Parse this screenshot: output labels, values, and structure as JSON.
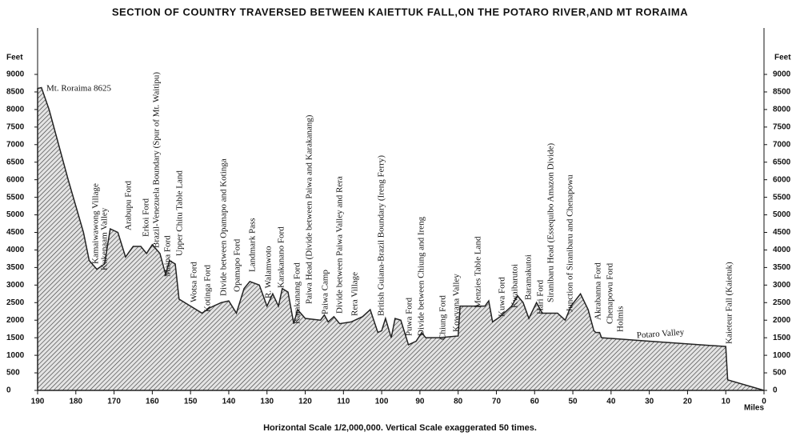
{
  "chart_data": {
    "type": "area",
    "title": "SECTION OF COUNTRY TRAVERSED BETWEEN KAIETTUK FALL,ON THE POTARO RIVER,AND MT RORAIMA",
    "subtitle": "Horizontal Scale 1/2,000,000. Vertical Scale exaggerated 50 times.",
    "y_label": "Feet",
    "y2_label": "Feet",
    "x_label": "Miles",
    "color": "#222222",
    "x": [
      190,
      189,
      187,
      182,
      178,
      176.5,
      174.5,
      172.5,
      171,
      169,
      167,
      165,
      163,
      161.5,
      160,
      158,
      156.5,
      155.5,
      154,
      153,
      150,
      147,
      145,
      142,
      140,
      138,
      136,
      134.5,
      132,
      130,
      128.5,
      127,
      126,
      124.5,
      123,
      122,
      120,
      116,
      115,
      114,
      112.5,
      111,
      108,
      105,
      103,
      101,
      100,
      99,
      97.5,
      96.5,
      95,
      93,
      91,
      89.5,
      88.5,
      85,
      80,
      79.5,
      77,
      73,
      72,
      71,
      69,
      66,
      64.5,
      63,
      61.5,
      59.5,
      58,
      54,
      52,
      50.5,
      48,
      46,
      44.5,
      44,
      43,
      42.5,
      30,
      10,
      9.5,
      0
    ],
    "values": [
      8600,
      8625,
      8000,
      6000,
      4500,
      3700,
      3450,
      3600,
      4600,
      4500,
      3800,
      4100,
      4100,
      3900,
      4150,
      3900,
      3300,
      3700,
      3600,
      2600,
      2400,
      2200,
      2350,
      2500,
      2550,
      2200,
      2900,
      3100,
      3000,
      2400,
      2750,
      2400,
      2900,
      2800,
      1900,
      2300,
      2050,
      2000,
      2150,
      1950,
      2100,
      1900,
      1950,
      2100,
      2300,
      1650,
      1700,
      2050,
      1500,
      2050,
      2000,
      1300,
      1400,
      1650,
      1500,
      1500,
      1550,
      2400,
      2400,
      2400,
      2550,
      1950,
      2100,
      2400,
      2700,
      2500,
      2050,
      2500,
      2200,
      2200,
      2000,
      2400,
      2750,
      2300,
      1700,
      1650,
      1650,
      1500,
      1400,
      1250,
      300,
      0
    ],
    "xlim": [
      190,
      0
    ],
    "xticks": [
      190,
      180,
      170,
      160,
      150,
      140,
      130,
      120,
      110,
      100,
      90,
      80,
      70,
      60,
      50,
      40,
      30,
      20,
      10,
      0
    ],
    "ylim": [
      0,
      9000
    ],
    "yticks": [
      0,
      500,
      1000,
      1500,
      2000,
      2500,
      3000,
      3500,
      4000,
      4500,
      5000,
      5500,
      6000,
      6500,
      7000,
      7500,
      8000,
      8500,
      9000
    ],
    "annotations": [
      "Mt. Roraima 8625",
      "Kamaiwawong Village",
      "Kukenaam Valley",
      "Arabupu Ford",
      "Erkoi Ford",
      "Brazil-Venezuela Boundary (Spur of Mt. Waitipu)",
      "Maipa Ford",
      "Upper Chitu Table Land",
      "Wotsa Ford",
      "Kotinga Ford",
      "Divide between Opamapo and Kotinga",
      "Opamapo Ford",
      "Landmark Pass",
      "R. Walamwoto",
      "Karakanano Ford",
      "Karakanang Ford",
      "Paiwa Head (Divide between Paiwa and Karakanang)",
      "Paiwa Camp",
      "Divide between Paiwa Valley and Rera",
      "Rera Village",
      "British Guiana-Brazil Boundary (Ireng Ferry)",
      "Puwa Ford",
      "Divide between Chiung and Ireng",
      "Chiung Ford",
      "Kowyana Valley",
      "Menzies Table Land",
      "Kuwa Ford",
      "Kwaibarutoi",
      "Baramakutoi",
      "Hari Ford",
      "Siranibaru Head (Essequibo Amazon Divide)",
      "Junction of Siranibaru and Chenapowu",
      "Akrabanna Ford",
      "Chenapowu Ford",
      "Holmis",
      "Potaro Valley",
      "Kaieteur Fall (Kaietuk)"
    ]
  }
}
